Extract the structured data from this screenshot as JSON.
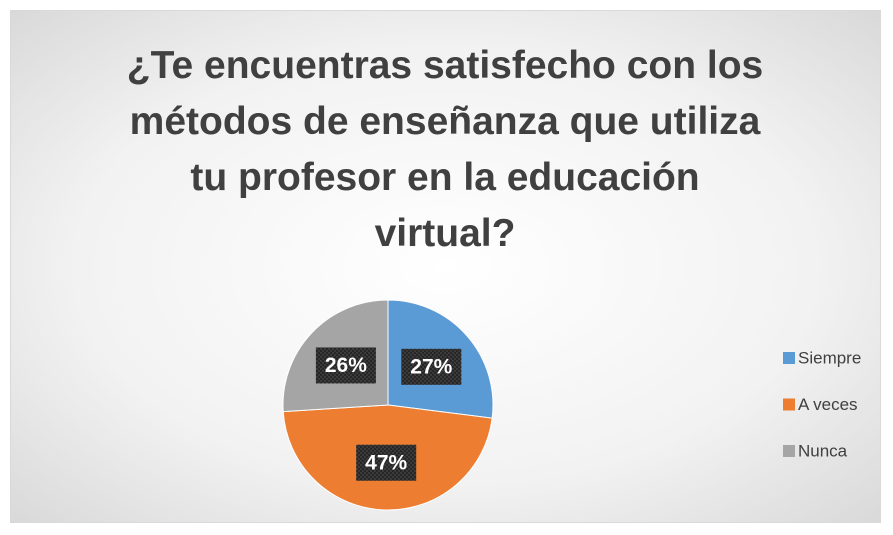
{
  "chart_data": {
    "type": "pie",
    "title": "¿Te encuentras satisfecho con los métodos de enseñanza que utiliza tu profesor en la educación virtual?",
    "categories": [
      "Siempre",
      "A veces",
      "Nunca"
    ],
    "values": [
      27,
      47,
      26
    ],
    "value_labels": [
      "27%",
      "47%",
      "26%"
    ],
    "colors": [
      "#5b9bd5",
      "#ed7d31",
      "#a5a5a5"
    ],
    "legend": "right"
  }
}
